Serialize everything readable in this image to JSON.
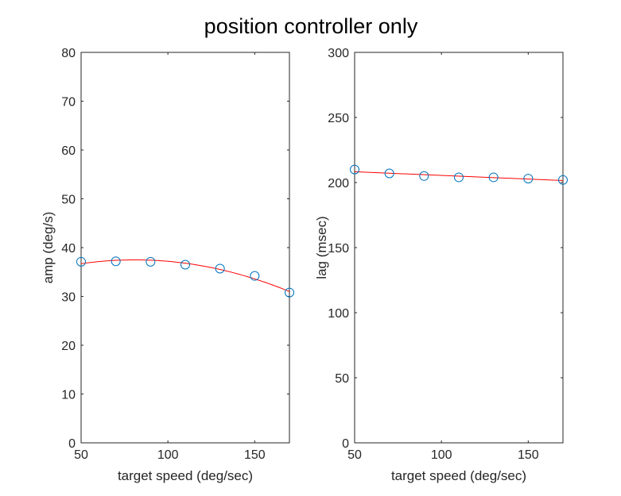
{
  "title": "position controller only",
  "colors": {
    "fit_line": "#ff0000",
    "marker": "#0072bd",
    "axis": "#262626",
    "background": "#ffffff"
  },
  "chart_data": [
    {
      "type": "scatter",
      "xlabel": "target speed (deg/sec)",
      "ylabel": "amp (deg/s)",
      "xlim": [
        50,
        170
      ],
      "ylim": [
        0,
        80
      ],
      "xticks": [
        50,
        100,
        150
      ],
      "yticks": [
        0,
        10,
        20,
        30,
        40,
        50,
        60,
        70,
        80
      ],
      "grid": false,
      "x": [
        50,
        70,
        90,
        110,
        130,
        150,
        170
      ],
      "y": [
        37.1,
        37.2,
        37.1,
        36.5,
        35.7,
        34.2,
        30.8
      ],
      "fit": {
        "type": "quadratic",
        "x": [
          50,
          80,
          110,
          140,
          170
        ],
        "y": [
          36.7,
          37.4,
          36.8,
          34.7,
          31.0
        ]
      }
    },
    {
      "type": "scatter",
      "xlabel": "target speed (deg/sec)",
      "ylabel": "lag (msec)",
      "xlim": [
        50,
        170
      ],
      "ylim": [
        0,
        300
      ],
      "xticks": [
        50,
        100,
        150
      ],
      "yticks": [
        0,
        50,
        100,
        150,
        200,
        250,
        300
      ],
      "grid": false,
      "x": [
        50,
        70,
        90,
        110,
        130,
        150,
        170
      ],
      "y": [
        210,
        207,
        205,
        204,
        204,
        203,
        202
      ],
      "fit": {
        "type": "linear",
        "x": [
          50,
          170
        ],
        "y": [
          208.3,
          201.5
        ]
      }
    }
  ]
}
